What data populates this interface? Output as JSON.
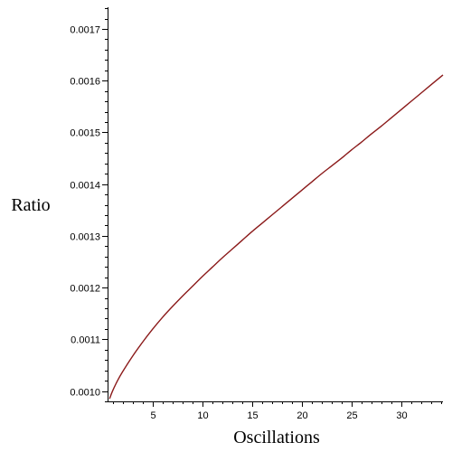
{
  "chart_data": {
    "type": "line",
    "title": "",
    "xlabel": "Oscillations",
    "ylabel": "Ratio",
    "xlim": [
      0.5,
      34.2
    ],
    "ylim": [
      0.00098,
      0.001742
    ],
    "x_ticks": [
      5,
      10,
      15,
      20,
      25,
      30
    ],
    "x_tick_labels": [
      "5",
      "10",
      "15",
      "20",
      "25",
      "30"
    ],
    "y_ticks": [
      0.001,
      0.0011,
      0.0012,
      0.0013,
      0.0014,
      0.0015,
      0.0016,
      0.0017
    ],
    "y_tick_labels": [
      "0.0010",
      "0.0011",
      "0.0012",
      "0.0013",
      "0.0014",
      "0.0015",
      "0.0016",
      "0.0017"
    ],
    "grid": false,
    "colors": {
      "series": "#8b1a1a",
      "axis": "#000000"
    },
    "series": [
      {
        "x": [
          0.7,
          1,
          1.5,
          2,
          3,
          4,
          5,
          6,
          7,
          8,
          9,
          10,
          11,
          12,
          13,
          14,
          15,
          16,
          17,
          18,
          19,
          20,
          21,
          22,
          23,
          24,
          25,
          26,
          27,
          28,
          29,
          30,
          31,
          32,
          33,
          34.2
        ],
        "values": [
          0.000985,
          0.001,
          0.00102,
          0.001037,
          0.001067,
          0.001094,
          0.001119,
          0.001142,
          0.001163,
          0.001183,
          0.001202,
          0.001221,
          0.001239,
          0.001257,
          0.001274,
          0.001291,
          0.001308,
          0.001324,
          0.00134,
          0.001356,
          0.001372,
          0.001388,
          0.001404,
          0.00142,
          0.001435,
          0.00145,
          0.001466,
          0.001481,
          0.001497,
          0.001512,
          0.001528,
          0.001544,
          0.00156,
          0.001576,
          0.001592,
          0.001611
        ]
      }
    ]
  }
}
